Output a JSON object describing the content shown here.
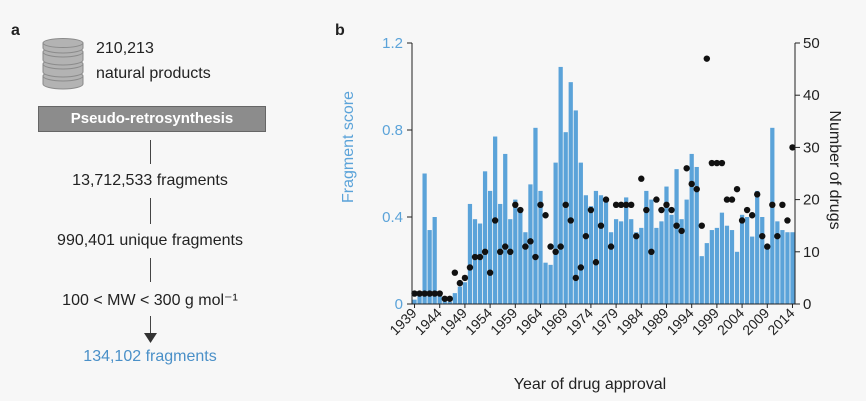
{
  "panel_a": {
    "label": "a",
    "top_count": "210,213",
    "top_desc": "natural products",
    "process": "Pseudo-retrosynthesis",
    "step1": "13,712,533 fragments",
    "step2": "990,401 unique fragments",
    "step3": "100 < MW < 300 g mol⁻¹",
    "result": "134,102 fragments",
    "result_color": "#4a90c8"
  },
  "colors": {
    "bar": "#5ba3d9",
    "left_axis": "#5ba3d9",
    "dot": "#111111"
  },
  "chart_data": {
    "label": "b",
    "type": "bar",
    "xlabel": "Year of drug approval",
    "ylabel_left": "Fragment score",
    "ylabel_right": "Number of drugs",
    "ylim_left": [
      0,
      1.2
    ],
    "yticks_left": [
      "0",
      "0.4",
      "0.8",
      "1.2"
    ],
    "ylim_right": [
      0,
      50
    ],
    "yticks_right": [
      "0",
      "10",
      "20",
      "30",
      "40",
      "50"
    ],
    "xticks": [
      "1939",
      "1944",
      "1949",
      "1954",
      "1959",
      "1964",
      "1969",
      "1974",
      "1979",
      "1984",
      "1989",
      "1994",
      "1999",
      "2004",
      "2009",
      "2014"
    ],
    "years": [
      1939,
      1940,
      1941,
      1942,
      1943,
      1944,
      1945,
      1946,
      1947,
      1948,
      1949,
      1950,
      1951,
      1952,
      1953,
      1954,
      1955,
      1956,
      1957,
      1958,
      1959,
      1960,
      1961,
      1962,
      1963,
      1964,
      1965,
      1966,
      1967,
      1968,
      1969,
      1970,
      1971,
      1972,
      1973,
      1974,
      1975,
      1976,
      1977,
      1978,
      1979,
      1980,
      1981,
      1982,
      1983,
      1984,
      1985,
      1986,
      1987,
      1988,
      1989,
      1990,
      1991,
      1992,
      1993,
      1994,
      1995,
      1996,
      1997,
      1998,
      1999,
      2000,
      2001,
      2002,
      2003,
      2004,
      2005,
      2006,
      2007,
      2008,
      2009,
      2010,
      2011,
      2012,
      2013,
      2014
    ],
    "series": [
      {
        "kind": "bar",
        "axis": "left",
        "values": [
          0.02,
          0.05,
          0.6,
          0.34,
          0.4,
          0.06,
          0.02,
          0.01,
          0.05,
          0.08,
          0.1,
          0.46,
          0.39,
          0.37,
          0.61,
          0.52,
          0.77,
          0.46,
          0.69,
          0.39,
          0.48,
          0.44,
          0.33,
          0.55,
          0.81,
          0.52,
          0.19,
          0.18,
          0.65,
          1.09,
          0.79,
          1.02,
          0.89,
          0.65,
          0.5,
          0.45,
          0.52,
          0.5,
          0.48,
          0.33,
          0.39,
          0.38,
          0.49,
          0.39,
          0.33,
          0.35,
          0.52,
          0.48,
          0.35,
          0.38,
          0.54,
          0.41,
          0.62,
          0.39,
          0.48,
          0.69,
          0.63,
          0.22,
          0.28,
          0.34,
          0.35,
          0.42,
          0.36,
          0.34,
          0.24,
          0.41,
          0.4,
          0.31,
          0.52,
          0.4,
          0.26,
          0.81,
          0.38,
          0.34,
          0.33,
          0.33
        ]
      },
      {
        "kind": "dot",
        "axis": "right",
        "values": [
          2,
          2,
          2,
          2,
          2,
          2,
          1,
          1,
          6,
          4,
          5,
          7,
          9,
          9,
          10,
          6,
          16,
          10,
          11,
          10,
          19,
          18,
          11,
          12,
          9,
          19,
          17,
          11,
          10,
          11,
          19,
          16,
          5,
          7,
          13,
          18,
          8,
          15,
          20,
          11,
          19,
          19,
          19,
          19,
          13,
          24,
          18,
          10,
          20,
          18,
          19,
          18,
          15,
          14,
          26,
          23,
          22,
          15,
          47,
          27,
          27,
          27,
          20,
          20,
          22,
          16,
          18,
          17,
          21,
          13,
          11,
          19,
          13,
          19,
          16,
          30
        ]
      }
    ]
  }
}
